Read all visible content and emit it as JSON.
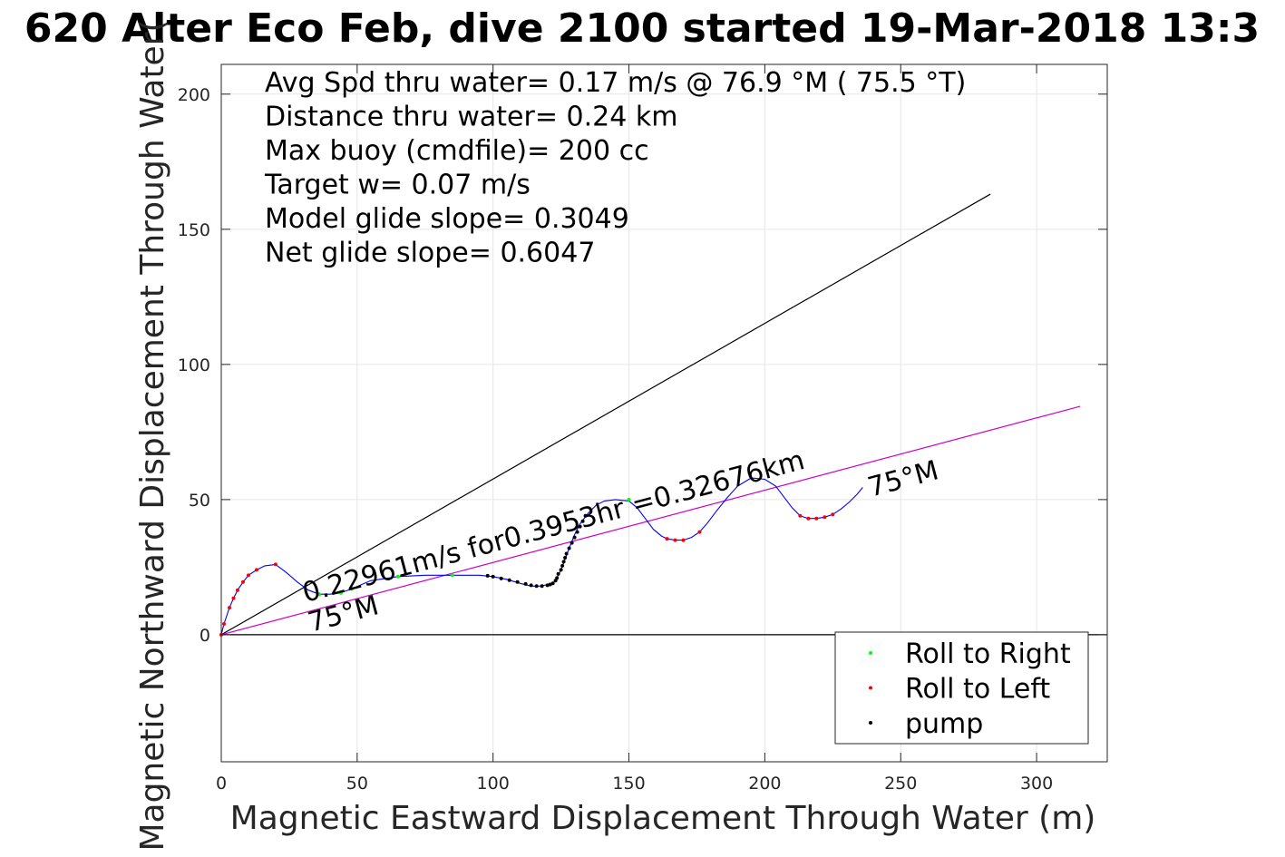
{
  "chart_data": {
    "type": "line",
    "title": "620 Alter Eco Feb, dive 2100 started 19-Mar-2018 13:3",
    "xlabel": "Magnetic Eastward Displacement Through Water (m)",
    "ylabel": "Magnetic Northward Displacement Through Water(",
    "xlim": [
      0,
      326
    ],
    "ylim": [
      -47,
      211
    ],
    "xticks": [
      0,
      50,
      100,
      150,
      200,
      250,
      300
    ],
    "yticks": [
      0,
      50,
      100,
      150,
      200
    ],
    "grid": true,
    "info_lines": [
      "Avg Spd thru water=  0.17 m/s @  76.9 °M ( 75.5 °T)",
      "Distance thru water=  0.24 km",
      "Max buoy (cmdfile)= 200 cc",
      "Target w= 0.07 m/s",
      "Model glide slope= 0.3049",
      "Net glide slope= 0.6047"
    ],
    "annotations": [
      {
        "text": "0.22961m/s for0.3953hr =0.32676km",
        "x": 31,
        "y": 12,
        "angle": 15
      },
      {
        "text": "75°M",
        "x": 33,
        "y": 1,
        "angle": 15
      },
      {
        "text": "75°M",
        "x": 239,
        "y": 51,
        "angle": 15
      }
    ],
    "reference_lines": [
      {
        "color": "#000000",
        "x": [
          0,
          283
        ],
        "y": [
          0,
          163
        ]
      },
      {
        "color": "#cc00cc",
        "x": [
          0,
          316
        ],
        "y": [
          0,
          84.5
        ]
      },
      {
        "color": "#000000",
        "x": [
          0,
          326
        ],
        "y": [
          0,
          0
        ]
      }
    ],
    "track": {
      "color": "#0000ff",
      "x": [
        0,
        0.5,
        1,
        2,
        3,
        4.5,
        6,
        8,
        10,
        13,
        16,
        20,
        24,
        28,
        32,
        36,
        40,
        44,
        48,
        55,
        65,
        75,
        85,
        95,
        100,
        105,
        110,
        114,
        117,
        120,
        122,
        123.5,
        125,
        126.5,
        128,
        130,
        132,
        135,
        138,
        141,
        145,
        150,
        153,
        156,
        159,
        162,
        164,
        167,
        170,
        173,
        176,
        179,
        182,
        186,
        190,
        195,
        200,
        204,
        207,
        210,
        213,
        216,
        219,
        222,
        225,
        228,
        231,
        234,
        236
      ],
      "y": [
        0,
        2,
        4,
        7,
        10,
        13.5,
        16.5,
        19.5,
        22,
        24,
        25.5,
        26,
        23,
        19.5,
        16.5,
        15,
        15,
        15.5,
        17,
        20,
        21.5,
        22,
        22,
        22,
        21.5,
        20.5,
        19,
        18,
        18,
        18.5,
        19,
        21,
        24,
        28,
        32,
        37,
        41,
        45,
        48,
        49.5,
        50,
        49.5,
        47,
        43,
        39,
        36.5,
        35.5,
        35,
        35,
        36,
        38,
        41.5,
        45.5,
        50.5,
        55,
        58,
        57.5,
        55,
        51,
        47,
        44,
        43,
        43,
        43.5,
        44.5,
        46.5,
        49,
        52,
        54.5
      ]
    },
    "series": [
      {
        "name": "Roll to Right",
        "color": "#00ff00",
        "x": [
          36,
          44,
          48,
          65,
          85,
          150
        ],
        "y": [
          15,
          15.5,
          17,
          21.5,
          22,
          50
        ]
      },
      {
        "name": "Roll to Left",
        "color": "#ff0000",
        "x": [
          0,
          1,
          3,
          4.5,
          6,
          8,
          10,
          13,
          20,
          164,
          167,
          170,
          176,
          213,
          216,
          219,
          222,
          225
        ],
        "y": [
          0,
          4,
          10,
          13.5,
          16.5,
          19.5,
          22,
          24,
          26,
          35.5,
          35,
          35,
          38,
          44,
          43,
          43,
          43.5,
          44.5
        ]
      },
      {
        "name": "pump",
        "color": "#000000",
        "x": [
          98,
          100,
          103,
          106,
          109,
          112,
          114,
          116,
          118,
          120,
          121,
          122,
          123,
          123.5,
          124,
          125,
          125.5,
          126,
          126.5,
          127,
          128,
          129,
          130,
          131,
          132,
          133,
          134
        ],
        "y": [
          21.8,
          21.5,
          20.8,
          20.2,
          19.5,
          18.8,
          18.3,
          18.0,
          18.0,
          18.3,
          18.6,
          19.0,
          20.0,
          21.0,
          22.5,
          24.0,
          25.5,
          27.0,
          28.5,
          30.0,
          32.0,
          34.0,
          36.0,
          38.0,
          40.0,
          42.0,
          44.0
        ]
      }
    ],
    "legend_position": "bottom-right"
  }
}
